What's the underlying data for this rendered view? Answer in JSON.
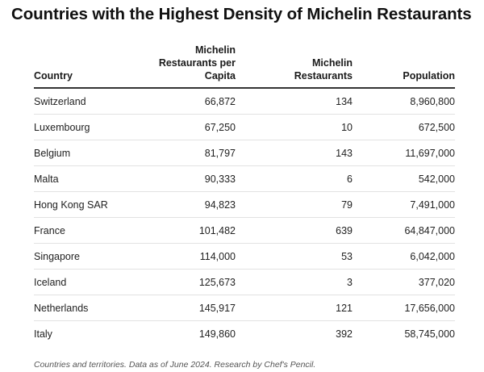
{
  "title": "Countries with the Highest Density of Michelin Restaurants",
  "footnote": "Countries and territories. Data as of June 2024. Research by Chef's Pencil.",
  "table": {
    "headers": [
      {
        "lines": [
          "Country"
        ]
      },
      {
        "lines": [
          "Michelin",
          "Restaurants per",
          "Capita"
        ]
      },
      {
        "lines": [
          "Michelin",
          "Restaurants"
        ]
      },
      {
        "lines": [
          "Population"
        ]
      }
    ],
    "rows": [
      {
        "country": "Switzerland",
        "per_capita": "66,872",
        "restaurants": "134",
        "population": "8,960,800"
      },
      {
        "country": "Luxembourg",
        "per_capita": "67,250",
        "restaurants": "10",
        "population": "672,500"
      },
      {
        "country": "Belgium",
        "per_capita": "81,797",
        "restaurants": "143",
        "population": "11,697,000"
      },
      {
        "country": "Malta",
        "per_capita": "90,333",
        "restaurants": "6",
        "population": "542,000"
      },
      {
        "country": "Hong Kong SAR",
        "per_capita": "94,823",
        "restaurants": "79",
        "population": "7,491,000"
      },
      {
        "country": "France",
        "per_capita": "101,482",
        "restaurants": "639",
        "population": "64,847,000"
      },
      {
        "country": "Singapore",
        "per_capita": "114,000",
        "restaurants": "53",
        "population": "6,042,000"
      },
      {
        "country": "Iceland",
        "per_capita": "125,673",
        "restaurants": "3",
        "population": "377,020"
      },
      {
        "country": "Netherlands",
        "per_capita": "145,917",
        "restaurants": "121",
        "population": "17,656,000"
      },
      {
        "country": "Italy",
        "per_capita": "149,860",
        "restaurants": "392",
        "population": "58,745,000"
      }
    ]
  },
  "chart_data": {
    "type": "table",
    "title": "Countries with the Highest Density of Michelin Restaurants",
    "columns": [
      "Country",
      "Michelin Restaurants per Capita",
      "Michelin Restaurants",
      "Population"
    ],
    "rows": [
      [
        "Switzerland",
        66872,
        134,
        8960800
      ],
      [
        "Luxembourg",
        67250,
        10,
        672500
      ],
      [
        "Belgium",
        81797,
        143,
        11697000
      ],
      [
        "Malta",
        90333,
        6,
        542000
      ],
      [
        "Hong Kong SAR",
        94823,
        79,
        7491000
      ],
      [
        "France",
        101482,
        639,
        64847000
      ],
      [
        "Singapore",
        114000,
        53,
        6042000
      ],
      [
        "Iceland",
        125673,
        3,
        377020
      ],
      [
        "Netherlands",
        145917,
        121,
        17656000
      ],
      [
        "Italy",
        149860,
        392,
        58745000
      ]
    ]
  }
}
